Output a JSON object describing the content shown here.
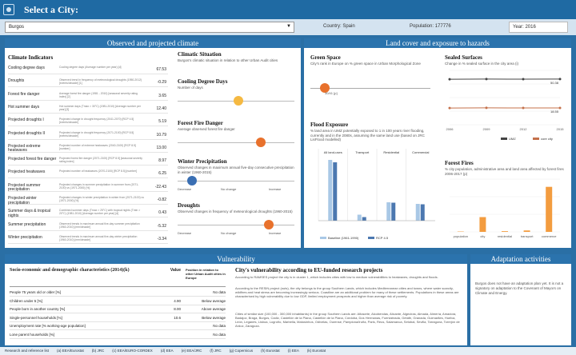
{
  "header": {
    "title": "Select a City:"
  },
  "filters": {
    "city": "Burgos",
    "country": "Country: Spain",
    "population": "Population: 177776",
    "year": "Year: 2016"
  },
  "climate": {
    "section_title": "Observed and projected climate",
    "indicators_title": "Climate Indicators",
    "indicators": [
      {
        "name": "Cooling degree days",
        "desc": "Cooling degree days (Average number per year) [d]",
        "value": "67.53"
      },
      {
        "name": "Droughts",
        "desc": "Observed trend in frequency of meteorological droughts (1950-2012) [events/decade] [1]",
        "value": "-0.29"
      },
      {
        "name": "Forest fire danger",
        "desc": "Average forest fire danger (1981 - 2010) [seasonal severity rating index] [2]",
        "value": "3.65"
      },
      {
        "name": "Hot summer days",
        "desc": "Hot summer days (Tmax > 30°C) (1981-2010) [Average number per year] [3]",
        "value": "12.40"
      },
      {
        "name": "Projected droughts I",
        "desc": "Projected change in drought frequency (2041-2070) [RCP 4.5] [events/decade]",
        "value": "5.19"
      },
      {
        "name": "Projected droughts II",
        "desc": "Projected change in drought frequency (2071-2100) [RCP 8.5] [events/decade]",
        "value": "10.79"
      },
      {
        "name": "Projected extreme heatwaves",
        "desc": "Projected number of extreme heatwaves (2040-2100) [RCP 8.5] [number]",
        "value": "13.00"
      },
      {
        "name": "Projected forest fire danger",
        "desc": "Projected forest fire danger (2071-2100) [RCP 8.5] [seasonal severity rating index]",
        "value": "8.97"
      },
      {
        "name": "Projected heatwaves",
        "desc": "Projected number of heatwaves (2070-2100) [RCP 8.5] [number]",
        "value": "6.25"
      },
      {
        "name": "Projected summer precipitation",
        "desc": "Projected changes in summer precipitation in summer from (2071-2100) vs (1971-2000) [%]",
        "value": "-22.43"
      },
      {
        "name": "Projected winter precipitation",
        "desc": "Projected changes in winter precipitation in winter from (2071-2100) vs (1971-2000) [%]",
        "value": "-0.82"
      },
      {
        "name": "Summer days & tropical nights",
        "desc": "Combined summer days (Tmax > 25°C) with tropical nights (Tmin > 20°C) (1981-2010) [Average number per year] [d]",
        "value": "0.43"
      },
      {
        "name": "Summer precipitation",
        "desc": "Observed trends in maximum annual five-day summer precipitation (1960-2010) [mm/decade]",
        "value": "-5.32"
      },
      {
        "name": "Winter precipitation",
        "desc": "Observed trends in maximum annual five-day winter precipitation (1960-2010) [mm/decade]",
        "value": "-3.34"
      }
    ],
    "situation_title": "Climatic Situation",
    "situation_text": "Burgos's climatic situation in relation to other Urban Audit cities",
    "gauges": [
      {
        "title": "Cooling Degree Days",
        "sub": "Number of days",
        "level": 0.52,
        "color": "#f5b942",
        "left": "",
        "mid": "",
        "right": ""
      },
      {
        "title": "Forest Fire Danger",
        "sub": "Average observed forest fire danger",
        "level": 0.71,
        "color": "#e8712c",
        "left": "",
        "mid": "",
        "right": ""
      },
      {
        "title": "Winter Precipitation",
        "sub": "Observed changes in maximum annual five-day consecutive precipitation in winter (1960-2015)",
        "level": 0.12,
        "color": "#3a6fb3",
        "left": "Decrease",
        "mid": "No change",
        "right": "Increase"
      },
      {
        "title": "Droughts",
        "sub": "Observed changes in frequency of meteorological droughts (1960-2015)",
        "level": 0.78,
        "color": "#e8712c",
        "left": "Decrease",
        "mid": "No change",
        "right": "Increase"
      }
    ]
  },
  "land": {
    "section_title": "Land cover and exposure to hazards",
    "green_title": "Green Space",
    "green_text": "City's rank in Europe on % green space in Urban Morphological Zone",
    "green_level": 0.12,
    "green_marker": "30/41 [p]",
    "flood_title": "Flood Exposure",
    "flood_text": "% land area in UMZ potentially exposed to 1 in 100 years river flooding, currently and in the 2080s, assuming the same land use (based on JRC LisFlood modelled)",
    "sealed_title": "Sealed Surfaces",
    "sealed_text": "Change in % sealed surface in the city area (i)",
    "fires_title": "Forest Fires",
    "fires_text": "% city population, administrative area and land area affected by forest fires 2006-2017 (p)"
  },
  "chart_data": [
    {
      "type": "bar",
      "title": "Flood Exposure",
      "categories": [
        "All land-uses",
        "Transport",
        "Residential",
        "Commercial"
      ],
      "series": [
        {
          "name": "Baseline (1961-1990)",
          "color": "#a9c8e6",
          "values": [
            15.2,
            1.5,
            4.6,
            4.2
          ]
        },
        {
          "name": "RCP 4.5",
          "color": "#4c78b0",
          "values": [
            14.6,
            0.9,
            4.5,
            4.1
          ]
        }
      ],
      "ylim": [
        0,
        16
      ]
    },
    {
      "type": "line",
      "title": "Sealed Surfaces",
      "x": [
        2006,
        2009,
        2012,
        2015
      ],
      "series": [
        {
          "name": "UMZ",
          "color": "#444444",
          "values": [
            50.2,
            50.4,
            50.3,
            50.38
          ]
        },
        {
          "name": "core city",
          "color": "#c4704a",
          "values": [
            18.4,
            18.6,
            18.5,
            18.55
          ]
        }
      ],
      "data_labels": [
        "50.38",
        "18.55"
      ],
      "ylim": [
        0,
        60
      ]
    },
    {
      "type": "bar",
      "title": "Forest Fires",
      "categories": [
        "population",
        "city",
        "residential",
        "transport",
        "commerce"
      ],
      "values": [
        0.1,
        4.2,
        0.2,
        0.4,
        12.8
      ],
      "color": "#f39c3f",
      "ylim": [
        0,
        15
      ]
    }
  ],
  "vulnerability": {
    "section_title": "Vulnerability",
    "col1": "Socio-economic and demographic characteristics (2014)(k)",
    "col2": "Value",
    "col3": "Position in relation to other Urban Audit cities in Europe",
    "rows": [
      {
        "label": "People 75 years old or older [%]",
        "value": "",
        "pos": "No data"
      },
      {
        "label": "Children under 5 [%]",
        "value": "4.90",
        "pos": "Below average"
      },
      {
        "label": "People born in another country [%]",
        "value": "8.00",
        "pos": "Above average"
      },
      {
        "label": "Single-personnel households [%]",
        "value": "10.6",
        "pos": "Below average"
      },
      {
        "label": "Unemployment rate [% working-age population]",
        "value": "",
        "pos": "No data"
      },
      {
        "label": "Lone parent households [%]",
        "value": "",
        "pos": "No data"
      }
    ],
    "eu_title": "City's vulnerability according to EU-funded research projects",
    "eu_p1": "According to RAMSES project the city is in cluster 1, which includes cities with low to medium vulnerabilities to heatwaves, droughts and floods.",
    "eu_p2": "According to the RESIN project (nuts), the city belongs to the group Southern Lands, which includes Mediterranean cities and towns, where water scarcity, wildfires and heat stress are becoming increasingly serious. Coastline are an additional problem for many of these settlements. Populations in these areas are characterised by high vulnerability due to low GDP, limited employment prospects and higher than average risk of poverty.",
    "eu_p3": "Cities of similar size (100,000 - 300,000 inhabitants) in the group Southern Lands are: Albacete, Alcobendas, Alicante, Algeciras, Almada, Almería, Amadora, Badajoz, Braga, Burgos, Cadiz, Castellón de la Plana, Castellón de la Plana, Córdoba, Dos Hermanas, Fuenlabrada, Getafe, Granada, Guimarães, Huelva, León, Leganés, Lisboa, Logroño, Marbella, Matosinhos, Odivelas, Ourense, Pamplona/Iruña, Paris, Reus, Salamanca, Setúbal, Sevilla, Tarragona, Torrejón de Ardoz, Zaragoza."
  },
  "adaptation": {
    "section_title": "Adaptation activities",
    "text": "Burgos does not have an adaptation plan yet. It is not a signatory on adaptation to the Covenant of Mayors on Climate and Energy."
  },
  "footer": {
    "items": [
      "Research and reference list",
      "(a) EEA/Eurostat",
      "(b) JRC",
      "(c) EEA/EURO-CORDEX",
      "(d) EEA",
      "(e) EEA/JRC",
      "(f) JRC",
      "(g) Copernicus",
      "(h) Eurostat",
      "(i) EEA",
      "(k) Eurostat"
    ]
  }
}
